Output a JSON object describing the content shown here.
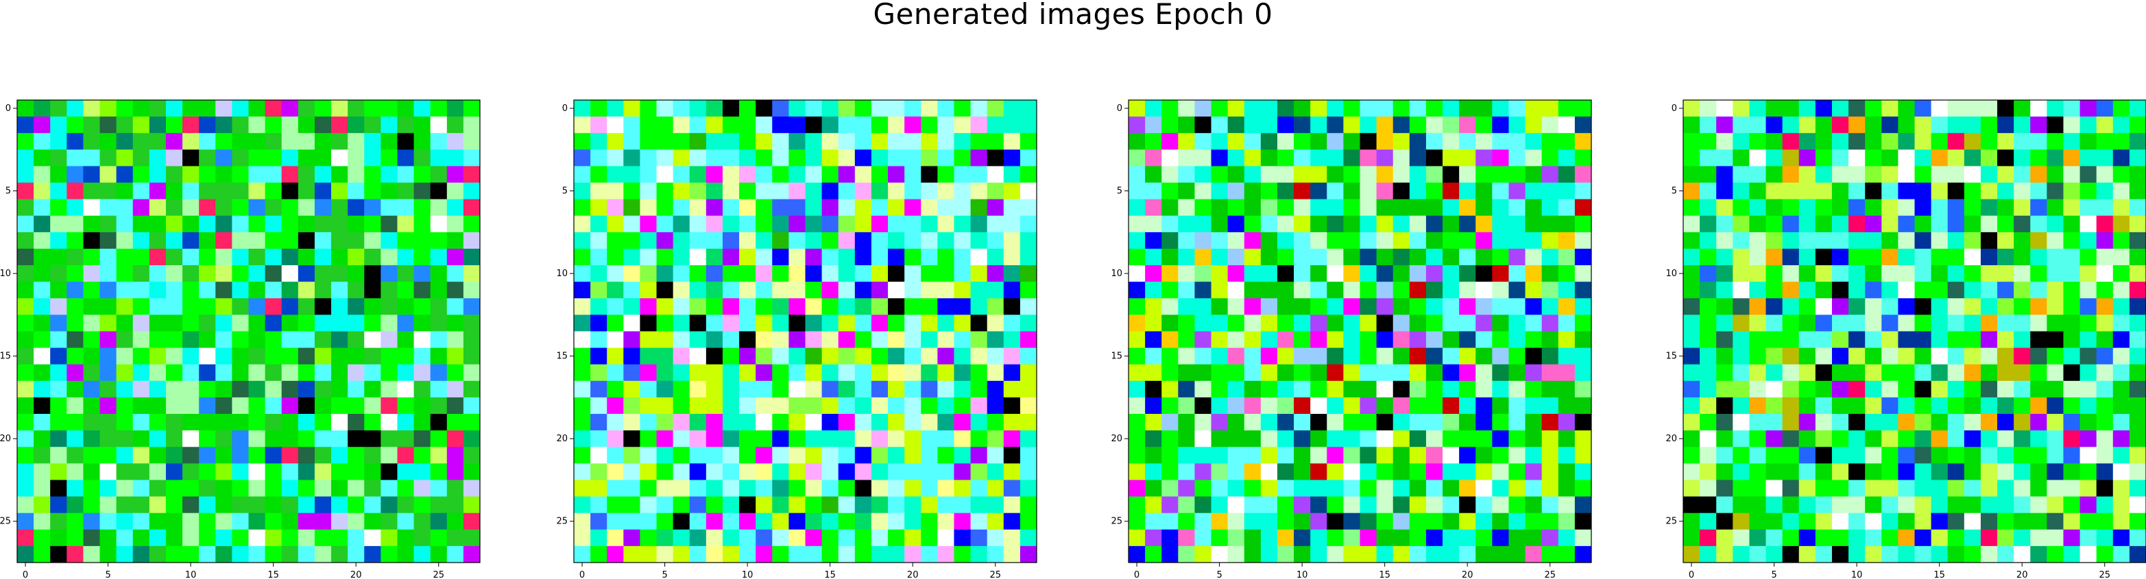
{
  "figure": {
    "title": "Generated images Epoch 0"
  },
  "chart_data": [
    {
      "type": "heatmap",
      "grid_size": 28,
      "xticks": [
        0,
        5,
        10,
        15,
        20,
        25
      ],
      "yticks": [
        0,
        5,
        10,
        15,
        20,
        25
      ],
      "xlim": [
        -0.5,
        27.5
      ],
      "ylim": [
        27.5,
        -0.5
      ],
      "seed": 101,
      "palette": [
        "#00ff00",
        "#00e000",
        "#22cc22",
        "#00ffee",
        "#55ffff",
        "#aaffaa",
        "#ccff66",
        "#00aa44",
        "#008866",
        "#0044cc",
        "#2288ff",
        "#cc00ff",
        "#ff2266",
        "#ffffff",
        "#000000",
        "#ccccff",
        "#88ff00",
        "#226644"
      ]
    },
    {
      "type": "heatmap",
      "grid_size": 28,
      "xticks": [
        0,
        5,
        10,
        15,
        20,
        25
      ],
      "yticks": [
        0,
        5,
        10,
        15,
        20,
        25
      ],
      "xlim": [
        -0.5,
        27.5
      ],
      "ylim": [
        27.5,
        -0.5
      ],
      "seed": 202,
      "palette": [
        "#00ff00",
        "#00ffcc",
        "#55ffff",
        "#aaffff",
        "#eeffaa",
        "#ccff00",
        "#00dd66",
        "#00aa88",
        "#0000ff",
        "#3366ff",
        "#aa00ff",
        "#ff00ff",
        "#ffffff",
        "#000000",
        "#ffaaff",
        "#88ff44",
        "#22bb00",
        "#ffff88"
      ]
    },
    {
      "type": "heatmap",
      "grid_size": 28,
      "xticks": [
        0,
        5,
        10,
        15,
        20,
        25
      ],
      "yticks": [
        0,
        5,
        10,
        15,
        20,
        25
      ],
      "xlim": [
        -0.5,
        27.5
      ],
      "ylim": [
        27.5,
        -0.5
      ],
      "seed": 303,
      "palette": [
        "#00ff00",
        "#00cc00",
        "#00ffdd",
        "#66ffff",
        "#ccffcc",
        "#ccff00",
        "#008844",
        "#004488",
        "#0000ff",
        "#aa44ff",
        "#ff00ff",
        "#cc0000",
        "#ffffff",
        "#000000",
        "#ffcc00",
        "#88ff88",
        "#ff66cc",
        "#99ccff"
      ]
    },
    {
      "type": "heatmap",
      "grid_size": 28,
      "xticks": [
        0,
        5,
        10,
        15,
        20,
        25
      ],
      "yticks": [
        0,
        5,
        10,
        15,
        20,
        25
      ],
      "xlim": [
        -0.5,
        27.5
      ],
      "ylim": [
        27.5,
        -0.5
      ],
      "seed": 404,
      "palette": [
        "#00ff00",
        "#00dd00",
        "#00ffcc",
        "#55ffee",
        "#ccffcc",
        "#ccff44",
        "#00aa66",
        "#003399",
        "#0000ff",
        "#2266ff",
        "#aa00ff",
        "#ff0066",
        "#ffffff",
        "#000000",
        "#ffaa00",
        "#88ff33",
        "#226655",
        "#bbbb00"
      ]
    }
  ]
}
